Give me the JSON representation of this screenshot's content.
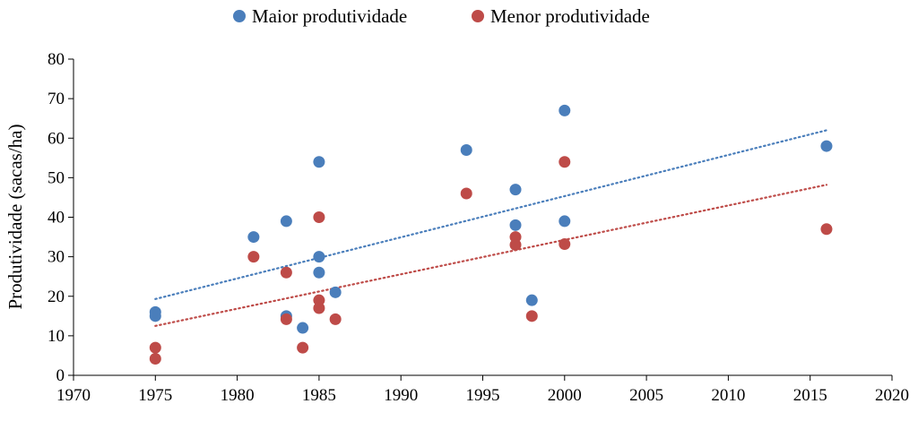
{
  "chart_data": {
    "type": "scatter",
    "title": "",
    "xlabel": "",
    "ylabel": "Produtividade (sacas/ha)",
    "xlim": [
      1970,
      2020
    ],
    "ylim": [
      0,
      80
    ],
    "xticks": [
      1970,
      1975,
      1980,
      1985,
      1990,
      1995,
      2000,
      2005,
      2010,
      2015,
      2020
    ],
    "yticks": [
      0,
      10,
      20,
      30,
      40,
      50,
      60,
      70,
      80
    ],
    "grid": false,
    "legend": "top-center",
    "series": [
      {
        "name": "Maior produtividade",
        "color": "#4a7ebb",
        "trendline": {
          "type": "linear",
          "style": "dotted",
          "from": [
            1975,
            19.3
          ],
          "to": [
            2016,
            62
          ]
        },
        "points": [
          [
            1975,
            16
          ],
          [
            1975,
            15
          ],
          [
            1981,
            35
          ],
          [
            1983,
            39
          ],
          [
            1983,
            15
          ],
          [
            1984,
            12
          ],
          [
            1985,
            54
          ],
          [
            1985,
            30
          ],
          [
            1985,
            26
          ],
          [
            1986,
            21
          ],
          [
            1994,
            57
          ],
          [
            1997,
            47
          ],
          [
            1997,
            38
          ],
          [
            1998,
            19
          ],
          [
            2000,
            67
          ],
          [
            2000,
            39
          ],
          [
            2016,
            58
          ]
        ]
      },
      {
        "name": "Menor produtividade",
        "color": "#be4b48",
        "trendline": {
          "type": "linear",
          "style": "dotted",
          "from": [
            1975,
            12.5
          ],
          "to": [
            2016,
            48.2
          ]
        },
        "points": [
          [
            1975,
            7
          ],
          [
            1975,
            4.2
          ],
          [
            1981,
            30
          ],
          [
            1983,
            26
          ],
          [
            1983,
            14.2
          ],
          [
            1984,
            7
          ],
          [
            1985,
            40
          ],
          [
            1985,
            19
          ],
          [
            1985,
            17
          ],
          [
            1986,
            14.2
          ],
          [
            1994,
            46
          ],
          [
            1997,
            35
          ],
          [
            1997,
            33
          ],
          [
            1998,
            15
          ],
          [
            2000,
            54
          ],
          [
            2000,
            33.2
          ],
          [
            2016,
            37
          ]
        ]
      }
    ]
  }
}
